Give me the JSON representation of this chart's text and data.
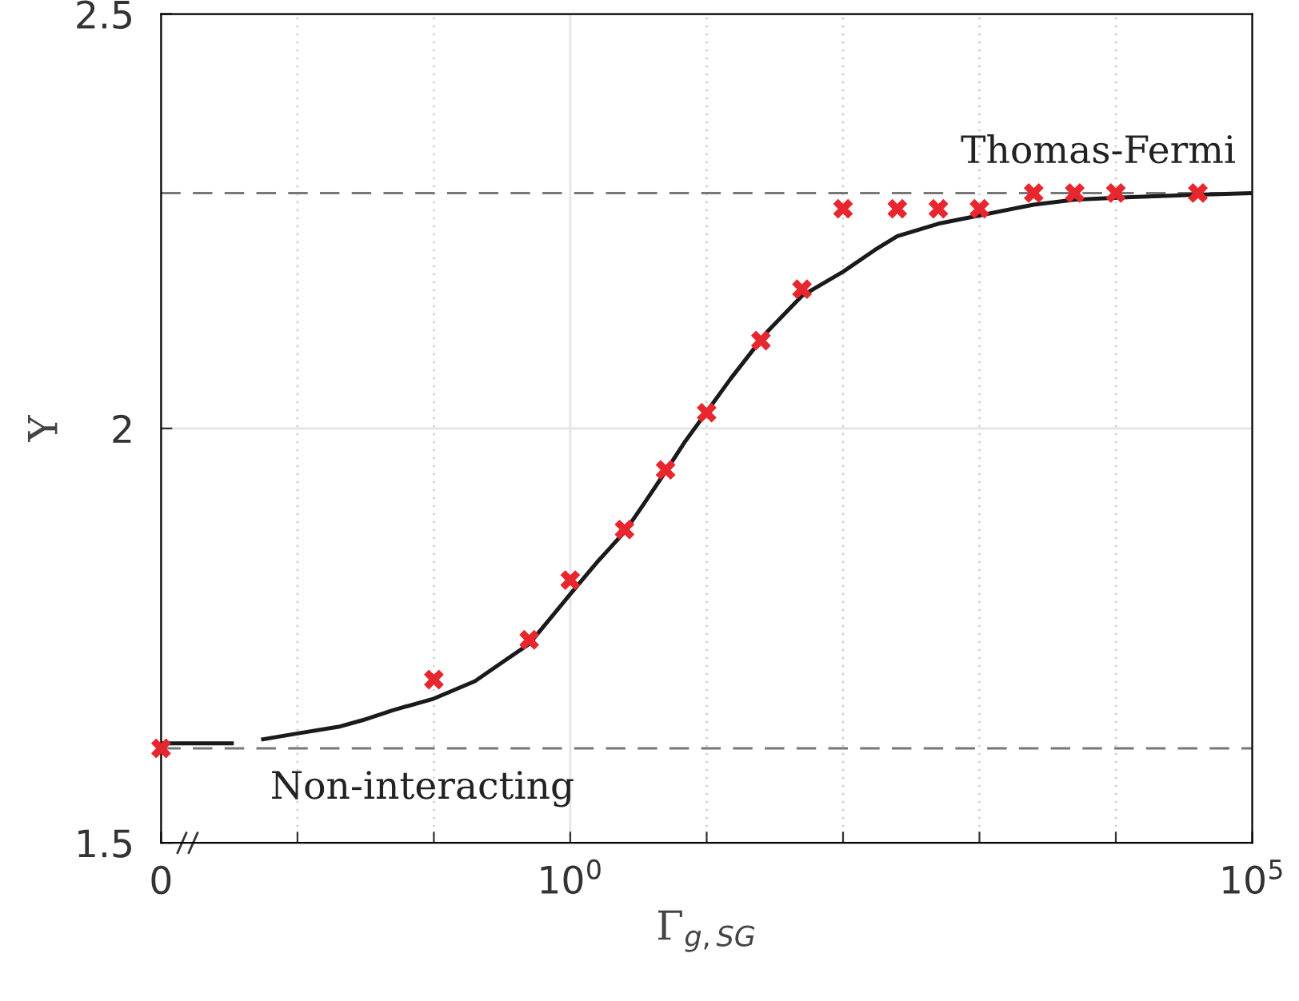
{
  "chart_data": {
    "type": "line",
    "xlabel": "Γ$_{g,SG}$",
    "ylabel": "Υ",
    "log": "x",
    "xlim": [
      0.001,
      100000
    ],
    "xticks": [
      {
        "value": 0.001,
        "label": "0"
      },
      {
        "value": 0.01,
        "label": null
      },
      {
        "value": 0.1,
        "label": null
      },
      {
        "value": 1,
        "label": "10$^{0}$"
      },
      {
        "value": 10,
        "label": null
      },
      {
        "value": 100,
        "label": null
      },
      {
        "value": 1000,
        "label": null
      },
      {
        "value": 10000,
        "label": null
      },
      {
        "value": 100000,
        "label": "10$^{5}$"
      }
    ],
    "ylim": [
      1.5,
      2.5
    ],
    "yticks": [
      1.5,
      2,
      2.5
    ],
    "grid": true,
    "ref_lines": [
      {
        "axis": "y",
        "value": 2.284,
        "label": "Thomas-Fermi",
        "color": "#777777",
        "line_style": "dashed"
      },
      {
        "axis": "y",
        "value": 1.614,
        "label": "Non-interacting",
        "color": "#777777",
        "line_style": "dashed"
      }
    ],
    "series": [
      {
        "color": "#1a1a1a",
        "line_style": "solid",
        "marker": "none",
        "x": [
          0.001,
          0.0033,
          0.0045,
          0.0056,
          0.01,
          0.02,
          0.03,
          0.05,
          0.1,
          0.2,
          0.3,
          0.5,
          1,
          1.6,
          2.5,
          3.5,
          5,
          7,
          10,
          15,
          27.6,
          50,
          100,
          170,
          250,
          500,
          1000,
          2500,
          5000,
          12000,
          40000,
          100000
        ],
        "values": [
          1.62,
          1.62,
          null,
          1.625,
          1.632,
          1.64,
          1.648,
          1.66,
          1.674,
          1.695,
          1.715,
          1.74,
          1.8,
          1.84,
          1.875,
          1.91,
          1.948,
          1.985,
          2.02,
          2.06,
          2.116,
          2.16,
          2.189,
          2.215,
          2.232,
          2.247,
          2.257,
          2.27,
          2.276,
          2.279,
          2.282,
          2.284
        ]
      },
      {
        "type": "scatter",
        "color": "#e8262e",
        "marker": "cross",
        "x": [
          0.001,
          0.1,
          0.5,
          1,
          2.5,
          5,
          10,
          25,
          50,
          100,
          250,
          500,
          1000,
          2500,
          5000,
          10000,
          40000
        ],
        "values": [
          1.614,
          1.697,
          1.745,
          1.817,
          1.878,
          1.95,
          2.019,
          2.106,
          2.168,
          2.265,
          2.265,
          2.265,
          2.265,
          2.284,
          2.284,
          2.284,
          2.284
        ]
      }
    ]
  }
}
